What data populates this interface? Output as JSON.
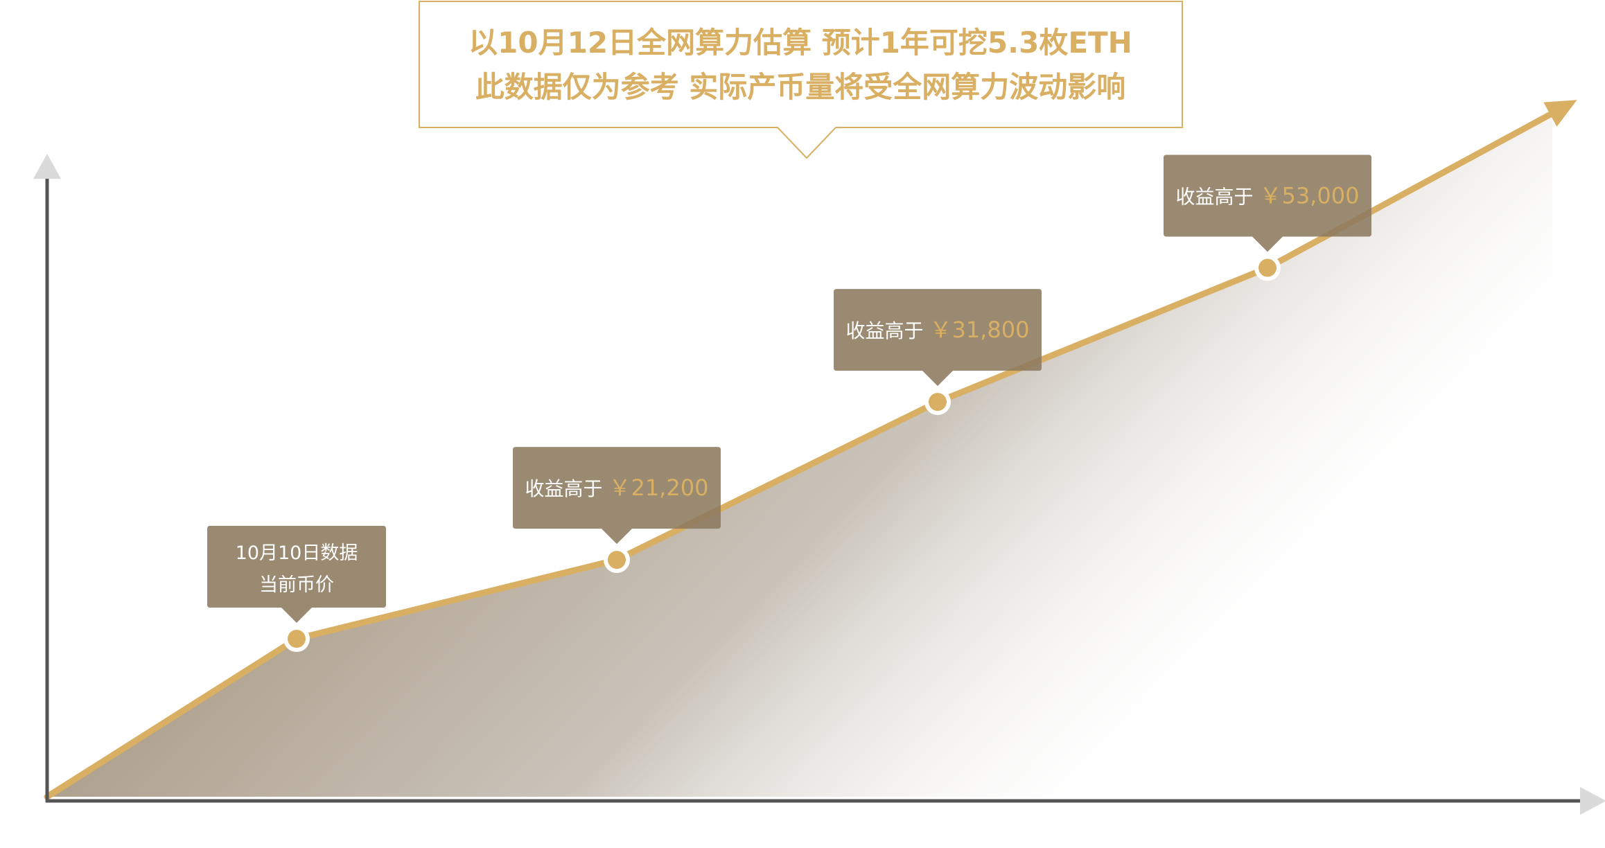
{
  "colors": {
    "accent": "#D9AF63",
    "tooltip_bg": "#8C7A5E",
    "axis": "#555555",
    "axis_arrow": "#DADADA",
    "area": "#A08E76",
    "note_border": "#D9AF63",
    "tooltip_text": "#FFFFFF"
  },
  "note": {
    "line1": "以10月12日全网算力估算   预计1年可挖5.3枚ETH",
    "line2": "此数据仅为参考   实际产币量将受全网算力波动影响"
  },
  "chart_data": {
    "type": "area",
    "title": "",
    "xlabel": "",
    "ylabel": "",
    "grid": false,
    "x_ticks": [],
    "y_ticks": [],
    "points": [
      {
        "x": 0,
        "y": 0
      },
      {
        "x": 1,
        "y": 21200,
        "marker": true,
        "label_lines": [
          "10月10日数据",
          "当前币价"
        ]
      },
      {
        "x": 2,
        "y": 31800,
        "marker": true,
        "label_prefix": "收益高于",
        "label_value": "￥21,200"
      },
      {
        "x": 3,
        "y": 53000,
        "marker": true,
        "label_prefix": "收益高于",
        "label_value": "￥31,800"
      },
      {
        "x": 4,
        "y": 71000,
        "marker": true,
        "label_prefix": "收益高于",
        "label_value": "￥53,000"
      },
      {
        "x": 5,
        "y": 93000
      }
    ]
  }
}
